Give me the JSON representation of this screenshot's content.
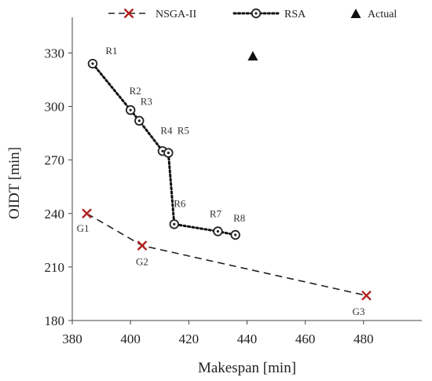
{
  "chart_data": {
    "type": "scatter",
    "xlabel": "Makespan [min]",
    "ylabel": "OIDT [min]",
    "xlim": [
      380,
      500
    ],
    "ylim": [
      180,
      350
    ],
    "x_ticks": [
      380,
      400,
      420,
      440,
      460,
      480
    ],
    "y_ticks": [
      180,
      210,
      240,
      270,
      300,
      330
    ],
    "grid": false,
    "legend_position": "top",
    "series": [
      {
        "name": "NSGA-II",
        "style": "dashed",
        "marker": "x",
        "color": "#b22222",
        "line_color": "#222222",
        "points": [
          {
            "x": 385,
            "y": 240,
            "label": "G1"
          },
          {
            "x": 404,
            "y": 222,
            "label": "G2"
          },
          {
            "x": 481,
            "y": 194,
            "label": "G3"
          }
        ]
      },
      {
        "name": "RSA",
        "style": "dotted",
        "marker": "circle-dot",
        "color": "#222222",
        "line_color": "#111111",
        "points": [
          {
            "x": 387,
            "y": 324,
            "label": "R1"
          },
          {
            "x": 400,
            "y": 298,
            "label": "R2"
          },
          {
            "x": 403,
            "y": 292,
            "label": "R3"
          },
          {
            "x": 411,
            "y": 275,
            "label": "R4"
          },
          {
            "x": 413,
            "y": 274,
            "label": "R5"
          },
          {
            "x": 415,
            "y": 234,
            "label": "R6"
          },
          {
            "x": 430,
            "y": 230,
            "label": "R7"
          },
          {
            "x": 436,
            "y": 228,
            "label": "R8"
          }
        ]
      },
      {
        "name": "Actual",
        "style": "none",
        "marker": "triangle",
        "color": "#111111",
        "points": [
          {
            "x": 442,
            "y": 328,
            "label": ""
          }
        ]
      }
    ]
  }
}
